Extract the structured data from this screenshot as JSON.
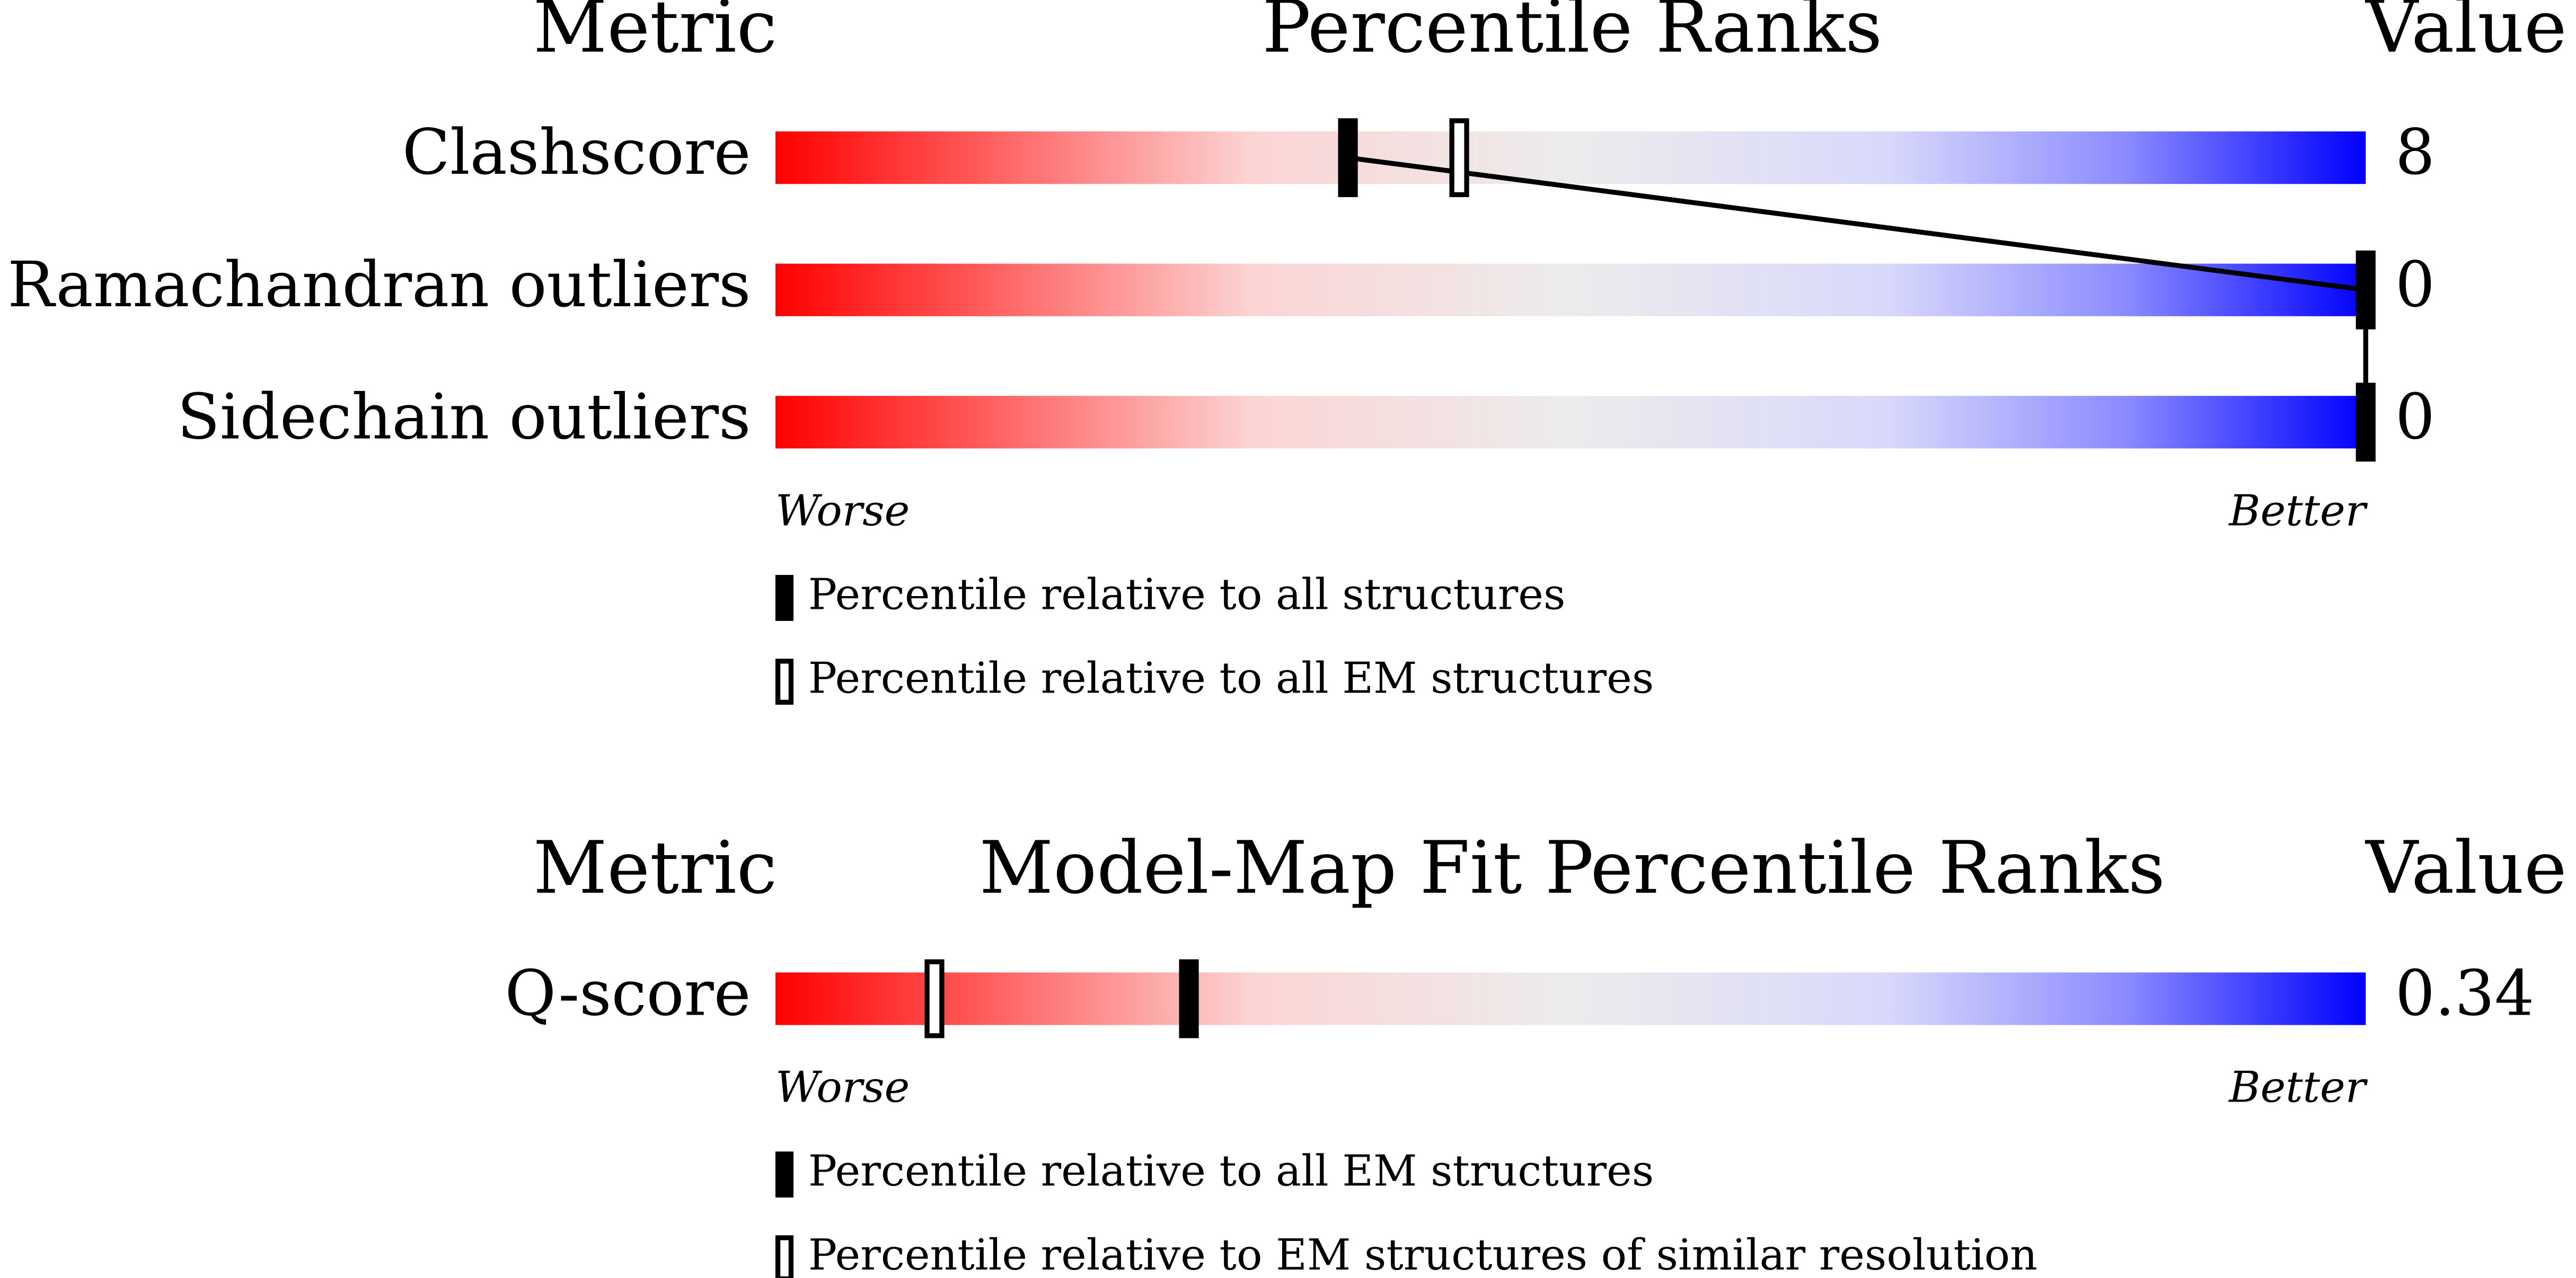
{
  "chart_data": [
    {
      "type": "percentile",
      "header_metric": "Metric",
      "title": "Percentile Ranks",
      "header_value": "Value",
      "categories": [
        "Clashscore",
        "Ramachandran outliers",
        "Sidechain outliers"
      ],
      "metric_values": [
        8,
        0,
        0
      ],
      "xlim": [
        0,
        100
      ],
      "low_label": "Worse",
      "high_label": "Better",
      "series": [
        {
          "name": "Percentile relative to all structures",
          "color": "#000000",
          "style": "filled",
          "values": [
            36,
            100,
            100
          ]
        },
        {
          "name": "Percentile relative to all EM structures",
          "color": "#000000",
          "style": "hollow",
          "values": [
            43,
            null,
            null
          ]
        }
      ]
    },
    {
      "type": "percentile",
      "header_metric": "Metric",
      "title": "Model-Map Fit Percentile Ranks",
      "header_value": "Value",
      "categories": [
        "Q-score"
      ],
      "metric_values": [
        0.34
      ],
      "xlim": [
        0,
        100
      ],
      "low_label": "Worse",
      "high_label": "Better",
      "series": [
        {
          "name": "Percentile relative to all EM structures",
          "color": "#000000",
          "style": "filled",
          "values": [
            26
          ]
        },
        {
          "name": "Percentile relative to EM structures of similar resolution",
          "color": "#000000",
          "style": "hollow",
          "values": [
            10
          ]
        }
      ]
    }
  ]
}
